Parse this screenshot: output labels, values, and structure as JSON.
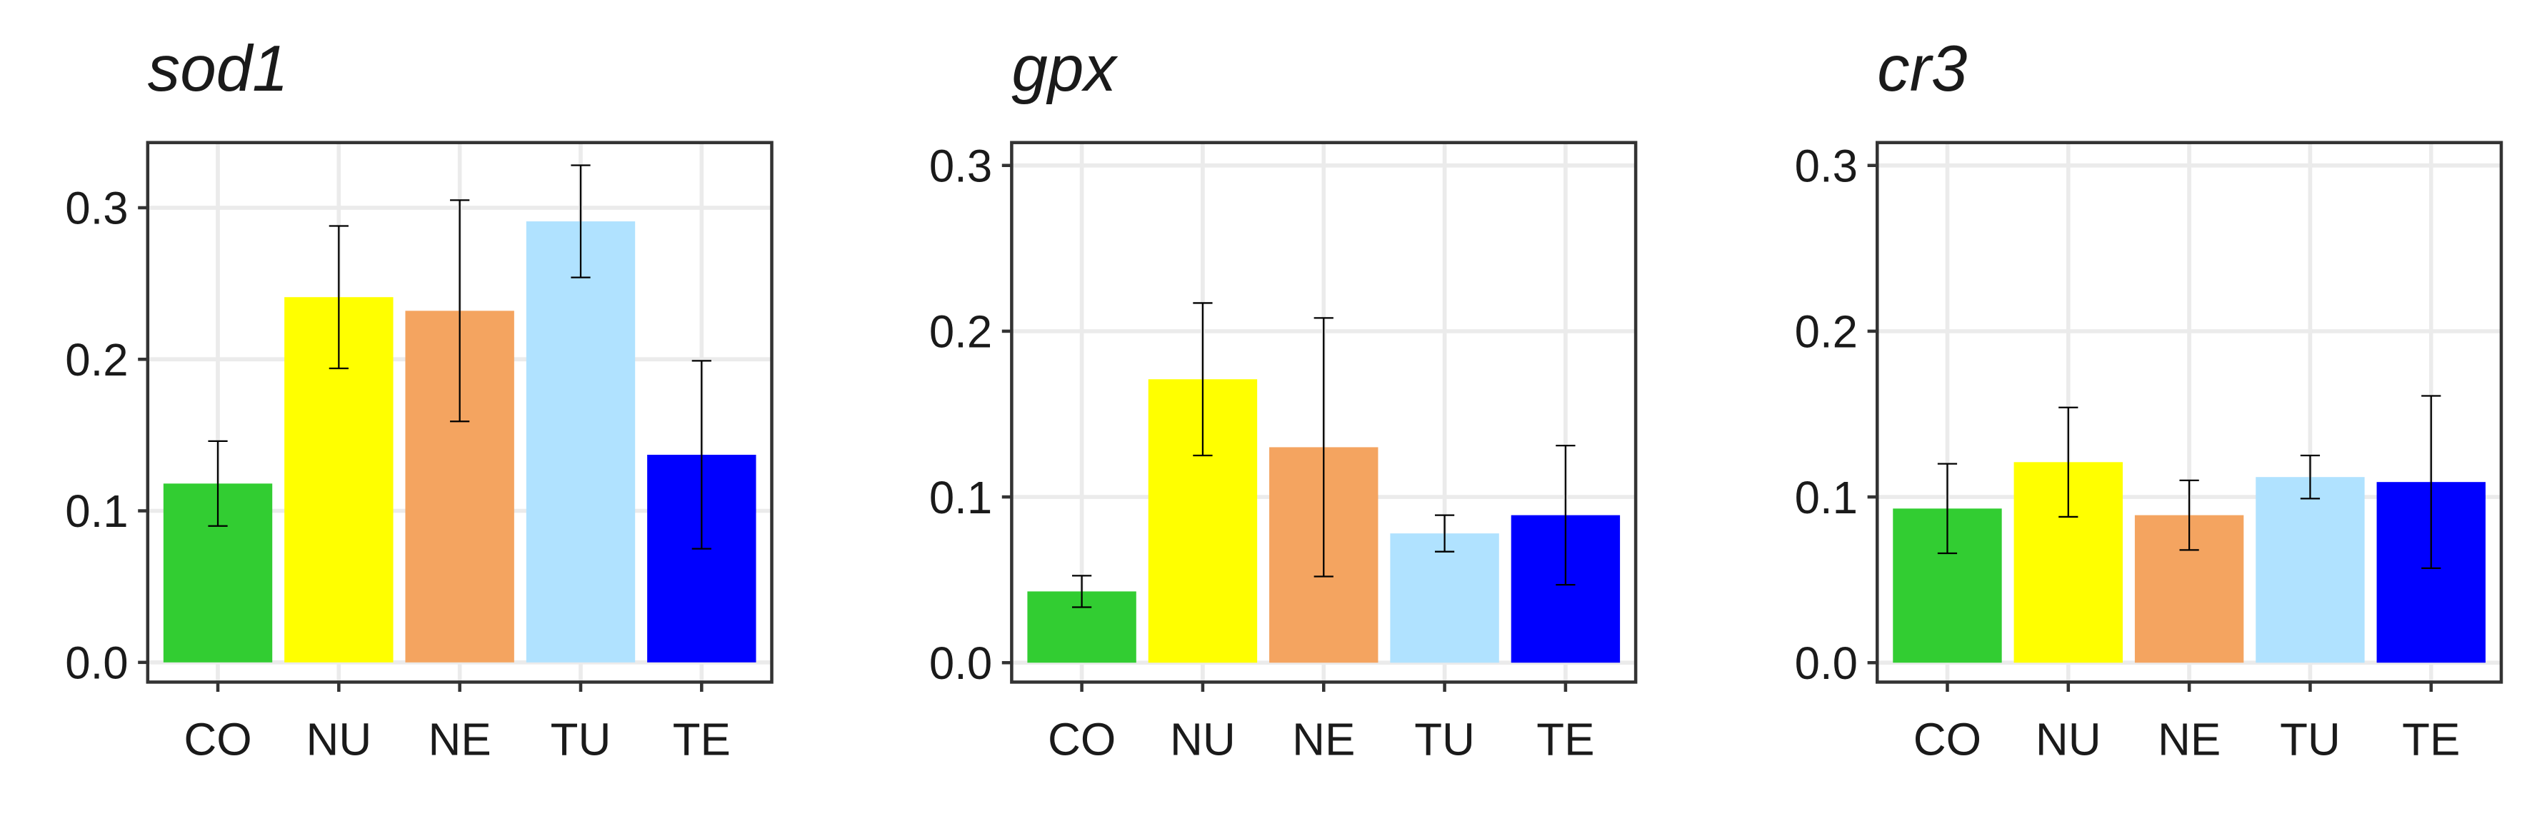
{
  "chart_data": [
    {
      "type": "bar",
      "title": "sod1",
      "categories": [
        "CO",
        "NU",
        "NE",
        "TU",
        "TE"
      ],
      "values": [
        0.118,
        0.241,
        0.232,
        0.291,
        0.137
      ],
      "errors": [
        0.028,
        0.047,
        0.073,
        0.037,
        0.062
      ],
      "colors": [
        "#32cd32",
        "#ffff00",
        "#f4a460",
        "#b0e2ff",
        "#0000ff"
      ],
      "ylim": [
        -0.013,
        0.343
      ],
      "yticks": [
        {
          "value": 0,
          "label": "0.0"
        },
        {
          "value": 0.1,
          "label": "0.1"
        },
        {
          "value": 0.2,
          "label": "0.2"
        },
        {
          "value": 0.3,
          "label": "0.3"
        }
      ],
      "grid": true
    },
    {
      "type": "bar",
      "title": "gpx",
      "categories": [
        "CO",
        "NU",
        "NE",
        "TU",
        "TE"
      ],
      "values": [
        0.043,
        0.171,
        0.13,
        0.078,
        0.089
      ],
      "errors": [
        0.0095,
        0.046,
        0.078,
        0.011,
        0.042
      ],
      "colors": [
        "#32cd32",
        "#ffff00",
        "#f4a460",
        "#b0e2ff",
        "#0000ff"
      ],
      "ylim": [
        -0.0117,
        0.3138
      ],
      "yticks": [
        {
          "value": 0,
          "label": "0.0"
        },
        {
          "value": 0.1,
          "label": "0.1"
        },
        {
          "value": 0.2,
          "label": "0.2"
        },
        {
          "value": 0.3,
          "label": "0.3"
        }
      ],
      "grid": true
    },
    {
      "type": "bar",
      "title": "cr3",
      "categories": [
        "CO",
        "NU",
        "NE",
        "TU",
        "TE"
      ],
      "values": [
        0.093,
        0.121,
        0.089,
        0.112,
        0.109
      ],
      "errors": [
        0.027,
        0.033,
        0.021,
        0.013,
        0.052
      ],
      "colors": [
        "#32cd32",
        "#ffff00",
        "#f4a460",
        "#b0e2ff",
        "#0000ff"
      ],
      "ylim": [
        -0.0117,
        0.3138
      ],
      "yticks": [
        {
          "value": 0,
          "label": "0.0"
        },
        {
          "value": 0.1,
          "label": "0.1"
        },
        {
          "value": 0.2,
          "label": "0.2"
        },
        {
          "value": 0.3,
          "label": "0.3"
        }
      ],
      "grid": true
    }
  ]
}
